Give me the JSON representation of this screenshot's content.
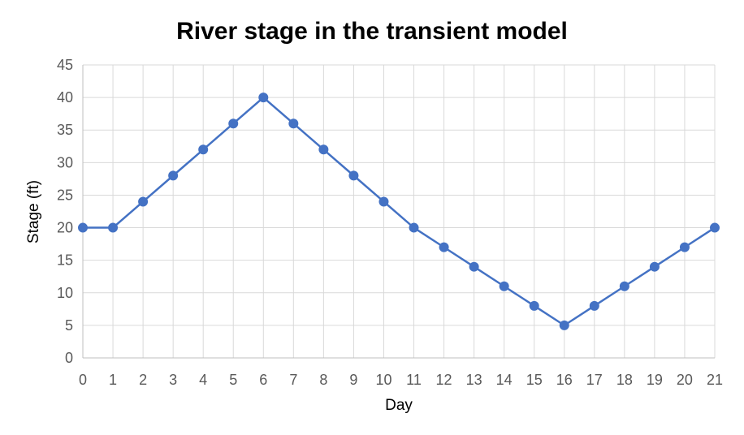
{
  "chart_data": {
    "type": "line",
    "title": "River stage in the transient model",
    "xlabel": "Day",
    "ylabel": "Stage (ft)",
    "x": [
      0,
      1,
      2,
      3,
      4,
      5,
      6,
      7,
      8,
      9,
      10,
      11,
      12,
      13,
      14,
      15,
      16,
      17,
      18,
      19,
      20,
      21
    ],
    "series": [
      {
        "values": [
          20,
          20,
          24,
          28,
          32,
          36,
          40,
          36,
          32,
          28,
          24,
          20,
          17,
          14,
          11,
          8,
          5,
          8,
          11,
          14,
          17,
          20
        ],
        "color": "#4472c4",
        "marker": "circle"
      }
    ],
    "xlim": [
      0,
      21
    ],
    "ylim": [
      0,
      45
    ],
    "xticks": [
      0,
      1,
      2,
      3,
      4,
      5,
      6,
      7,
      8,
      9,
      10,
      11,
      12,
      13,
      14,
      15,
      16,
      17,
      18,
      19,
      20,
      21
    ],
    "yticks": [
      0,
      5,
      10,
      15,
      20,
      25,
      30,
      35,
      40,
      45
    ],
    "grid": true,
    "legend": "none"
  }
}
